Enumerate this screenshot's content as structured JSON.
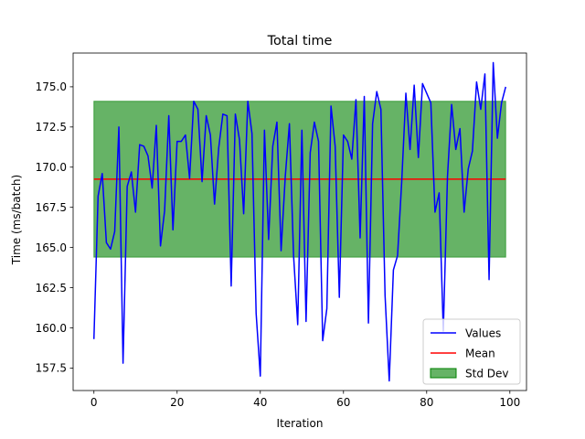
{
  "chart_data": {
    "type": "line",
    "title": "Total time",
    "xlabel": "Iteration",
    "ylabel": "Time (ms/batch)",
    "xlim": [
      -5,
      104
    ],
    "ylim": [
      156.1,
      177.1
    ],
    "xticks": [
      0,
      20,
      40,
      60,
      80,
      100
    ],
    "yticks": [
      157.5,
      160.0,
      162.5,
      165.0,
      167.5,
      170.0,
      172.5,
      175.0
    ],
    "ytick_labels": [
      "157.5",
      "160.0",
      "162.5",
      "165.0",
      "167.5",
      "170.0",
      "172.5",
      "175.0"
    ],
    "mean": 169.25,
    "std_band": [
      164.4,
      174.1
    ],
    "legend_position": "lower right",
    "legend": [
      "Values",
      "Mean",
      "Std Dev"
    ],
    "colors": {
      "values": "#0000ff",
      "mean": "#ff0000",
      "std_fill": "#008000",
      "std_edge": "#008000"
    },
    "series": [
      {
        "name": "Values",
        "x": [
          0,
          1,
          2,
          3,
          4,
          5,
          6,
          7,
          8,
          9,
          10,
          11,
          12,
          13,
          14,
          15,
          16,
          17,
          18,
          19,
          20,
          21,
          22,
          23,
          24,
          25,
          26,
          27,
          28,
          29,
          30,
          31,
          32,
          33,
          34,
          35,
          36,
          37,
          38,
          39,
          40,
          41,
          42,
          43,
          44,
          45,
          46,
          47,
          48,
          49,
          50,
          51,
          52,
          53,
          54,
          55,
          56,
          57,
          58,
          59,
          60,
          61,
          62,
          63,
          64,
          65,
          66,
          67,
          68,
          69,
          70,
          71,
          72,
          73,
          74,
          75,
          76,
          77,
          78,
          79,
          80,
          81,
          82,
          83,
          84,
          85,
          86,
          87,
          88,
          89,
          90,
          91,
          92,
          93,
          94,
          95,
          96,
          97,
          98,
          99
        ],
        "values": [
          159.3,
          168.2,
          169.6,
          165.3,
          164.9,
          166.0,
          172.5,
          157.8,
          168.8,
          169.7,
          167.2,
          171.4,
          171.3,
          170.7,
          168.7,
          172.6,
          165.1,
          167.3,
          173.2,
          166.1,
          171.6,
          171.6,
          172.0,
          169.3,
          174.1,
          173.6,
          169.1,
          173.2,
          172.0,
          167.7,
          171.2,
          173.3,
          173.2,
          162.6,
          173.3,
          171.7,
          167.1,
          174.1,
          172.1,
          160.9,
          157.0,
          172.3,
          165.5,
          171.3,
          172.8,
          164.8,
          169.4,
          172.7,
          164.5,
          160.2,
          172.3,
          160.4,
          170.9,
          172.8,
          171.6,
          159.2,
          161.2,
          173.8,
          171.3,
          161.9,
          172.0,
          171.6,
          170.5,
          174.2,
          165.6,
          174.4,
          160.3,
          172.7,
          174.7,
          173.6,
          162.0,
          156.7,
          163.6,
          164.5,
          169.1,
          174.6,
          171.1,
          175.1,
          170.6,
          175.2,
          174.6,
          174.0,
          167.2,
          168.4,
          159.8,
          169.4,
          173.9,
          171.1,
          172.4,
          167.2,
          169.9,
          171.0,
          175.3,
          173.6,
          175.8,
          163.0,
          176.5,
          171.8,
          174.0,
          175.0
        ]
      }
    ]
  }
}
